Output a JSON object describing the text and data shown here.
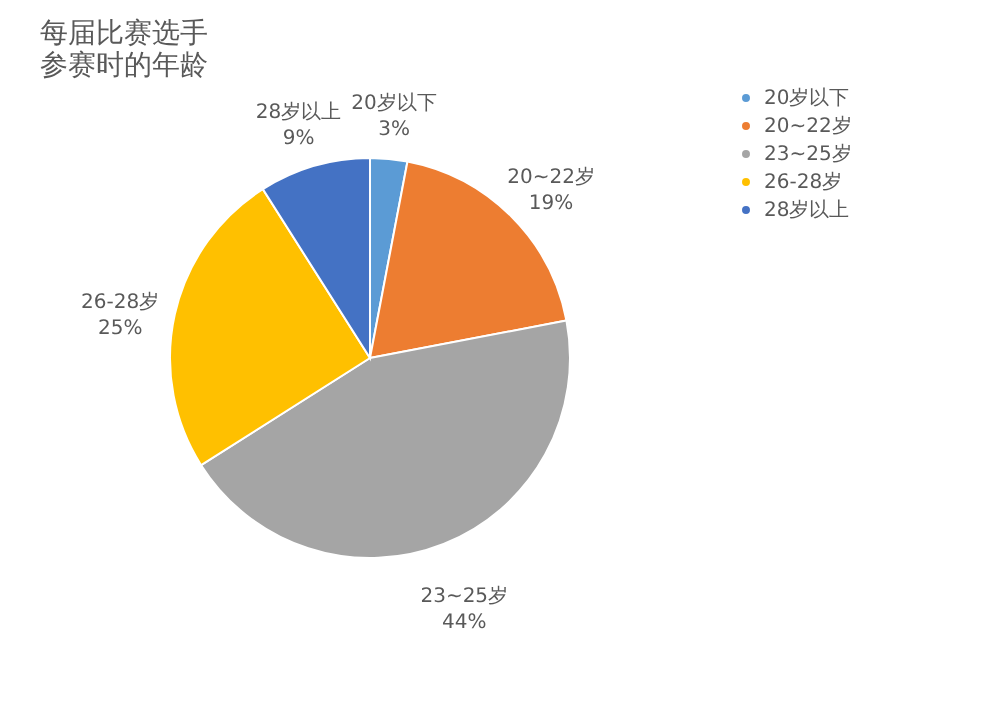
{
  "chart_data": {
    "type": "pie",
    "title": "每届比赛选手参赛时的年龄",
    "categories": [
      "20岁以下",
      "20~22岁",
      "23~25岁",
      "26-28岁",
      "28岁以上"
    ],
    "values": [
      3,
      19,
      44,
      25,
      9
    ],
    "value_labels": [
      "3%",
      "19%",
      "44%",
      "25%",
      "9%"
    ],
    "colors": [
      "#5b9bd5",
      "#ed7d31",
      "#a5a5a5",
      "#ffc000",
      "#4472c4"
    ],
    "legend": "right"
  }
}
